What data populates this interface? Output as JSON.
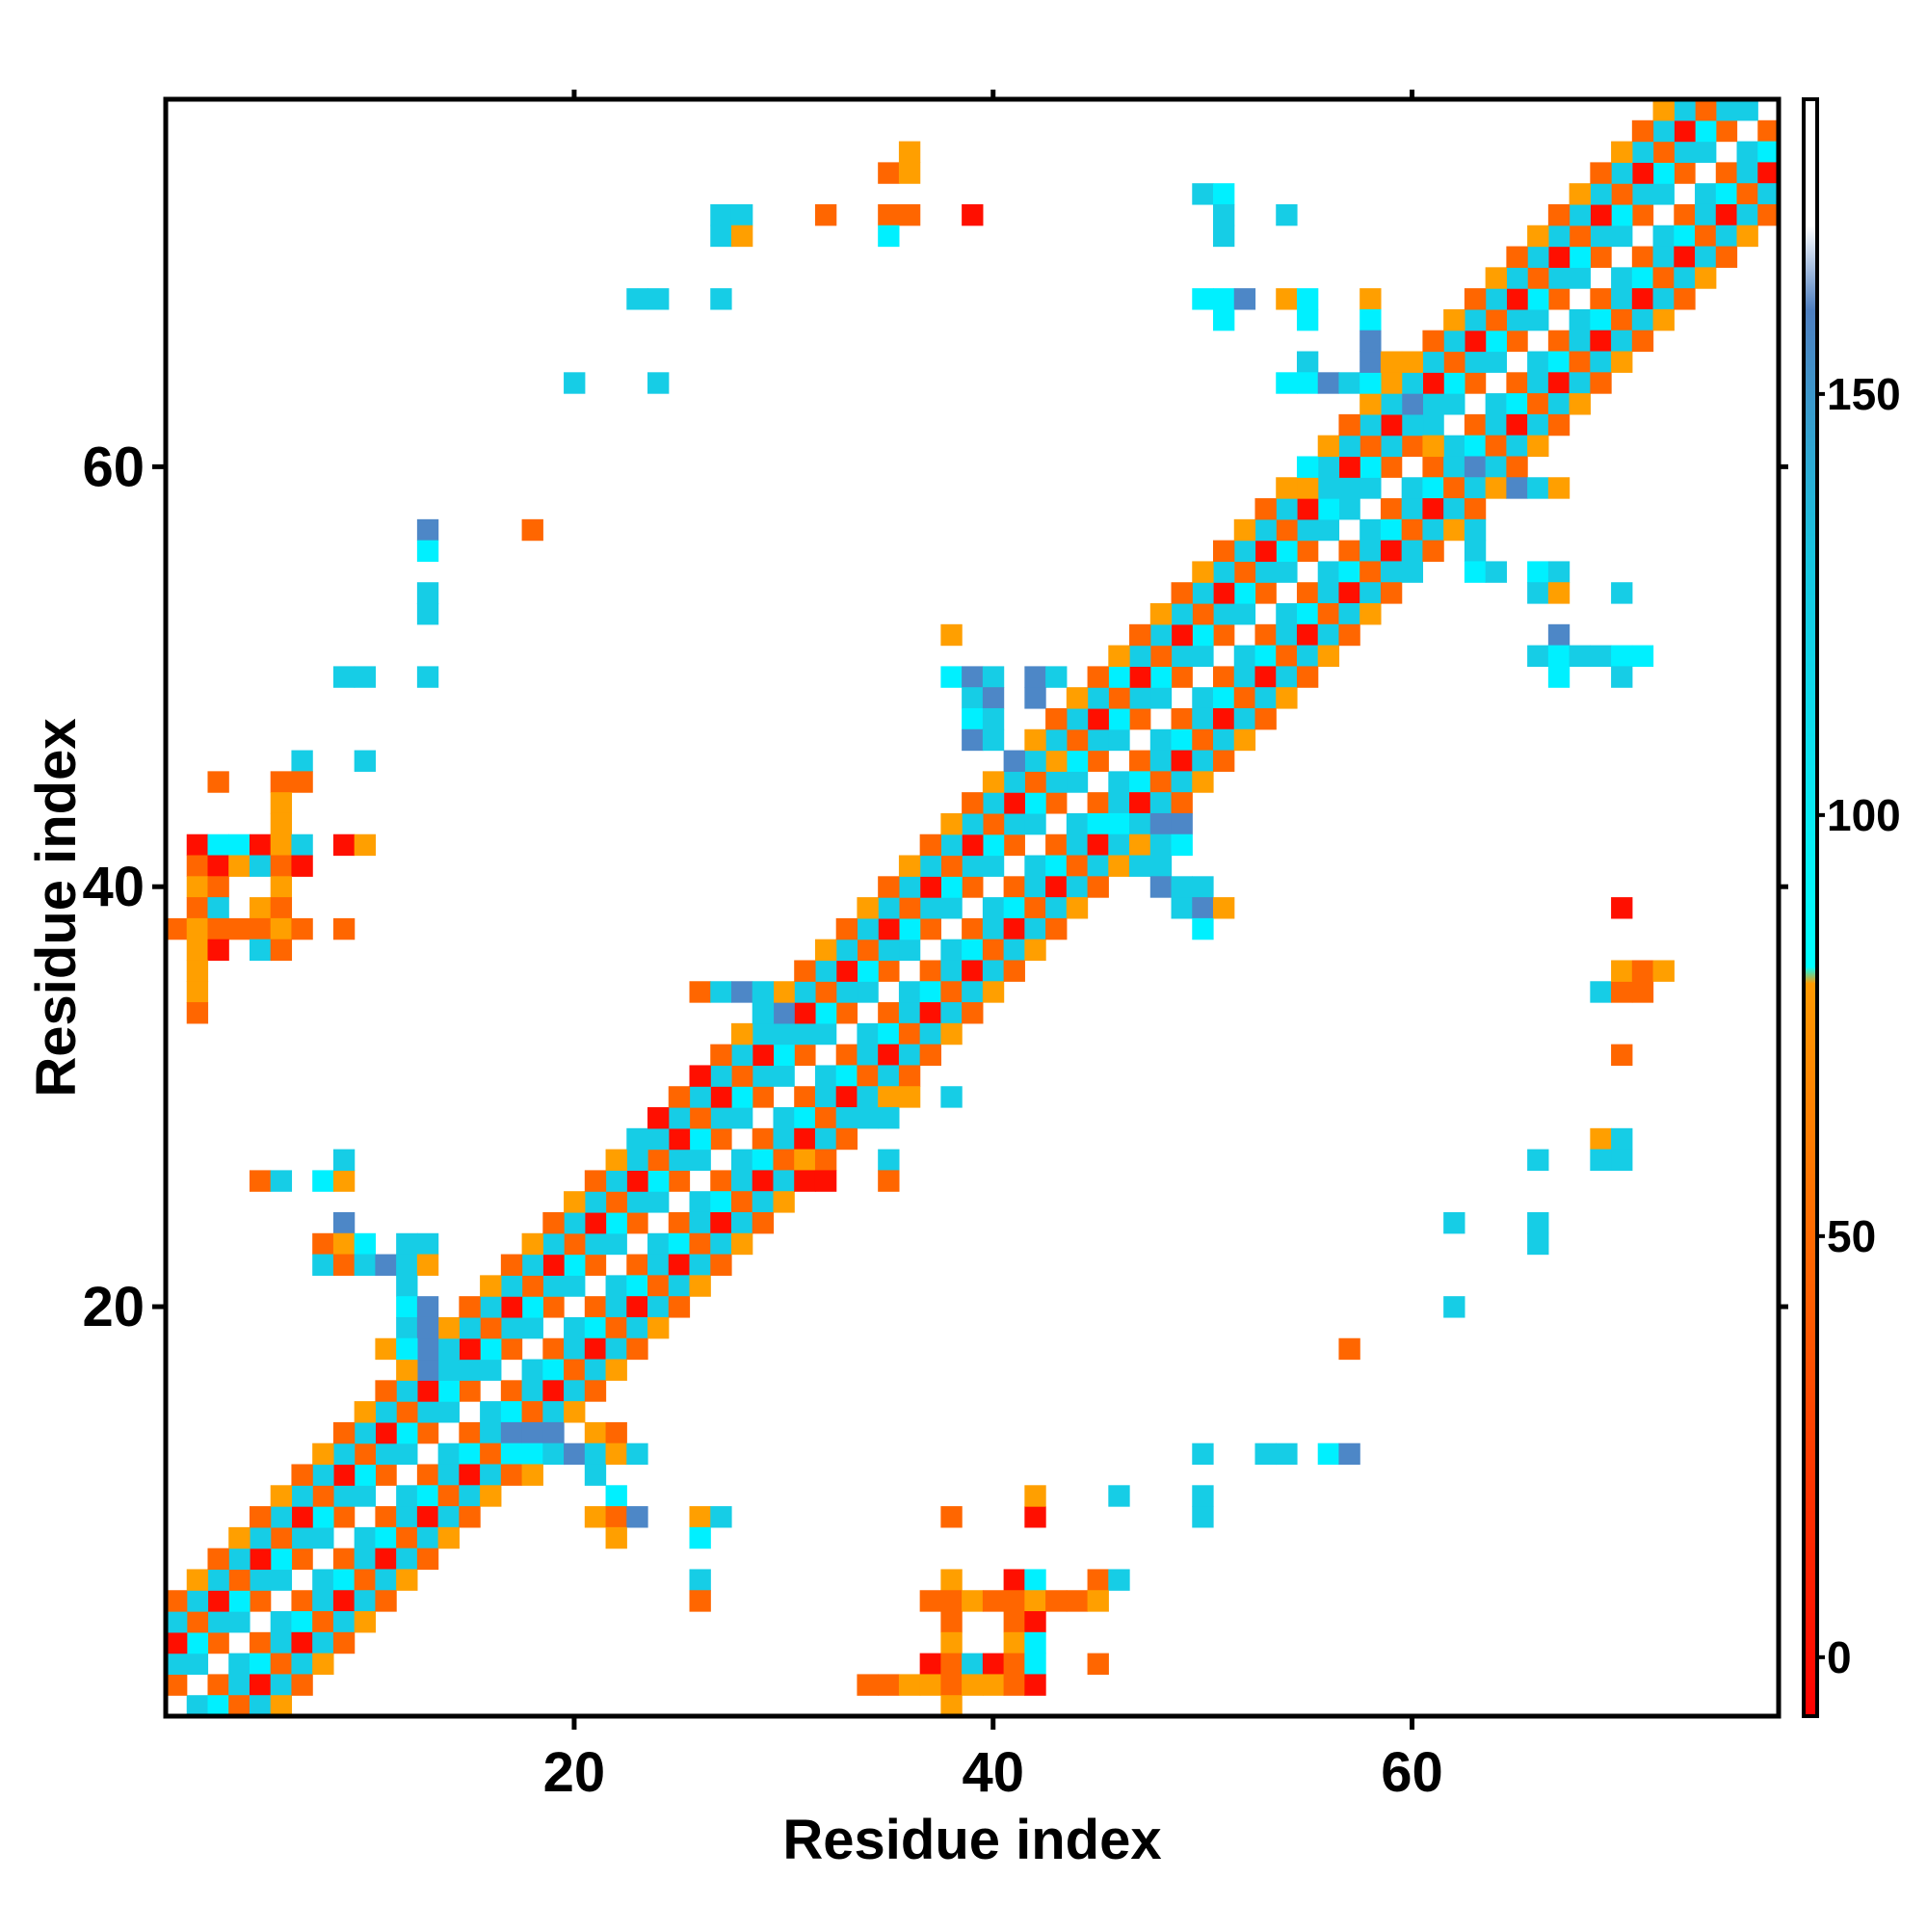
{
  "chart_data": {
    "type": "heatmap",
    "title": "",
    "xlabel": "Residue index",
    "ylabel": "Residue index",
    "xlim": [
      0.5,
      77.5
    ],
    "ylim": [
      0.5,
      77.5
    ],
    "x_ticks": [
      20,
      40,
      60
    ],
    "y_ticks": [
      20,
      40,
      60
    ],
    "grid": false,
    "legend": "right",
    "colorbar": {
      "range": [
        -7,
        185
      ],
      "ticks": [
        0,
        50,
        100,
        150
      ],
      "stops": [
        {
          "value": -7,
          "color": "#ff0000"
        },
        {
          "value": 40,
          "color": "#ff5a00"
        },
        {
          "value": 80,
          "color": "#ff9900"
        },
        {
          "value": 82,
          "color": "#00ffff"
        },
        {
          "value": 130,
          "color": "#16c6e0"
        },
        {
          "value": 160,
          "color": "#4f7fc0"
        },
        {
          "value": 170,
          "color": "#ffffff"
        },
        {
          "value": 185,
          "color": "#ffffff"
        }
      ]
    },
    "color_classes": {
      "r": {
        "color": "#ff0f00",
        "approx_value": 5
      },
      "o": {
        "color": "#ff6600",
        "approx_value": 40
      },
      "a": {
        "color": "#ff9f00",
        "approx_value": 70
      },
      "c": {
        "color": "#00f0ff",
        "approx_value": 90
      },
      "t": {
        "color": "#16cde6",
        "approx_value": 120
      },
      "b": {
        "color": "#4d87c7",
        "approx_value": 155
      }
    },
    "bands": [
      {
        "offset": 1,
        "pattern": [
          "o",
          "t"
        ]
      },
      {
        "offset": 2,
        "pattern": [
          "t",
          "c"
        ]
      },
      {
        "offset": 3,
        "pattern": [
          "r",
          "o"
        ]
      },
      {
        "offset": 4,
        "pattern": [
          "t",
          "t"
        ]
      },
      {
        "offset": 5,
        "pattern": [
          "o",
          "a"
        ]
      }
    ],
    "cells": [
      [
        39,
        72,
        "r"
      ],
      [
        32,
        72,
        "o"
      ],
      [
        35,
        74,
        "o"
      ],
      [
        36,
        74,
        "a"
      ],
      [
        36,
        75,
        "a"
      ],
      [
        35,
        72,
        "o"
      ],
      [
        36,
        72,
        "o"
      ],
      [
        27,
        72,
        "t"
      ],
      [
        28,
        72,
        "t"
      ],
      [
        27,
        71,
        "t"
      ],
      [
        28,
        71,
        "a"
      ],
      [
        35,
        71,
        "c"
      ],
      [
        23,
        68,
        "t"
      ],
      [
        24,
        68,
        "t"
      ],
      [
        27,
        68,
        "t"
      ],
      [
        20,
        64,
        "t"
      ],
      [
        24,
        64,
        "t"
      ],
      [
        13,
        57,
        "b"
      ],
      [
        13,
        56,
        "c"
      ],
      [
        13,
        54,
        "t"
      ],
      [
        13,
        53,
        "t"
      ],
      [
        13,
        50,
        "t"
      ],
      [
        18,
        57,
        "o"
      ],
      [
        9,
        50,
        "t"
      ],
      [
        10,
        50,
        "t"
      ],
      [
        7,
        46,
        "t"
      ],
      [
        10,
        46,
        "t"
      ],
      [
        3,
        45,
        "o"
      ],
      [
        6,
        45,
        "o"
      ],
      [
        7,
        45,
        "o"
      ],
      [
        6,
        44,
        "a"
      ],
      [
        6,
        43,
        "a"
      ],
      [
        2,
        42,
        "r"
      ],
      [
        3,
        42,
        "c"
      ],
      [
        4,
        42,
        "c"
      ],
      [
        5,
        42,
        "r"
      ],
      [
        6,
        42,
        "a"
      ],
      [
        7,
        42,
        "t"
      ],
      [
        9,
        42,
        "r"
      ],
      [
        10,
        42,
        "a"
      ],
      [
        2,
        41,
        "o"
      ],
      [
        3,
        41,
        "r"
      ],
      [
        4,
        41,
        "a"
      ],
      [
        5,
        41,
        "t"
      ],
      [
        6,
        41,
        "o"
      ],
      [
        7,
        41,
        "r"
      ],
      [
        2,
        40,
        "a"
      ],
      [
        3,
        40,
        "o"
      ],
      [
        6,
        40,
        "a"
      ],
      [
        2,
        39,
        "o"
      ],
      [
        3,
        39,
        "t"
      ],
      [
        5,
        39,
        "a"
      ],
      [
        6,
        39,
        "o"
      ],
      [
        1,
        38,
        "o"
      ],
      [
        2,
        38,
        "a"
      ],
      [
        3,
        38,
        "o"
      ],
      [
        4,
        38,
        "o"
      ],
      [
        5,
        38,
        "o"
      ],
      [
        6,
        38,
        "a"
      ],
      [
        7,
        38,
        "o"
      ],
      [
        9,
        38,
        "o"
      ],
      [
        2,
        37,
        "a"
      ],
      [
        3,
        37,
        "r"
      ],
      [
        5,
        37,
        "t"
      ],
      [
        6,
        37,
        "o"
      ],
      [
        2,
        36,
        "a"
      ],
      [
        2,
        35,
        "a"
      ],
      [
        2,
        34,
        "o"
      ],
      [
        5,
        26,
        "o"
      ],
      [
        6,
        26,
        "t"
      ],
      [
        8,
        26,
        "c"
      ],
      [
        9,
        26,
        "a"
      ],
      [
        9,
        27,
        "t"
      ],
      [
        9,
        24,
        "b"
      ],
      [
        8,
        23,
        "o"
      ],
      [
        9,
        23,
        "a"
      ],
      [
        10,
        23,
        "c"
      ],
      [
        12,
        23,
        "t"
      ],
      [
        13,
        23,
        "t"
      ],
      [
        8,
        22,
        "t"
      ],
      [
        9,
        22,
        "o"
      ],
      [
        10,
        22,
        "t"
      ],
      [
        11,
        22,
        "b"
      ],
      [
        12,
        22,
        "t"
      ],
      [
        13,
        22,
        "a"
      ],
      [
        12,
        21,
        "t"
      ],
      [
        12,
        20,
        "c"
      ],
      [
        13,
        20,
        "b"
      ],
      [
        12,
        19,
        "t"
      ],
      [
        13,
        19,
        "b"
      ],
      [
        11,
        18,
        "a"
      ],
      [
        12,
        18,
        "c"
      ],
      [
        13,
        18,
        "b"
      ],
      [
        14,
        18,
        "t"
      ],
      [
        12,
        17,
        "a"
      ],
      [
        13,
        17,
        "b"
      ],
      [
        14,
        17,
        "t"
      ],
      [
        15,
        17,
        "t"
      ],
      [
        17,
        14,
        "b"
      ],
      [
        18,
        14,
        "b"
      ],
      [
        19,
        14,
        "b"
      ],
      [
        17,
        13,
        "c"
      ],
      [
        18,
        13,
        "c"
      ],
      [
        19,
        13,
        "t"
      ],
      [
        20,
        13,
        "b"
      ],
      [
        21,
        14,
        "a"
      ],
      [
        22,
        14,
        "o"
      ],
      [
        21,
        13,
        "t"
      ],
      [
        22,
        13,
        "a"
      ],
      [
        23,
        13,
        "t"
      ],
      [
        18,
        12,
        "a"
      ],
      [
        21,
        12,
        "t"
      ],
      [
        22,
        11,
        "c"
      ],
      [
        21,
        10,
        "a"
      ],
      [
        22,
        10,
        "o"
      ],
      [
        23,
        10,
        "b"
      ],
      [
        22,
        9,
        "a"
      ],
      [
        26,
        10,
        "a"
      ],
      [
        27,
        10,
        "t"
      ],
      [
        26,
        9,
        "c"
      ],
      [
        26,
        7,
        "t"
      ],
      [
        26,
        6,
        "o"
      ],
      [
        38,
        10,
        "o"
      ],
      [
        42,
        10,
        "r"
      ],
      [
        42,
        11,
        "a"
      ],
      [
        46,
        11,
        "t"
      ],
      [
        50,
        11,
        "t"
      ],
      [
        50,
        10,
        "t"
      ],
      [
        38,
        7,
        "a"
      ],
      [
        41,
        7,
        "r"
      ],
      [
        42,
        7,
        "c"
      ],
      [
        45,
        7,
        "o"
      ],
      [
        46,
        7,
        "t"
      ],
      [
        37,
        6,
        "o"
      ],
      [
        38,
        6,
        "o"
      ],
      [
        39,
        6,
        "a"
      ],
      [
        40,
        6,
        "o"
      ],
      [
        41,
        6,
        "o"
      ],
      [
        42,
        6,
        "a"
      ],
      [
        43,
        6,
        "o"
      ],
      [
        44,
        6,
        "o"
      ],
      [
        45,
        6,
        "a"
      ],
      [
        38,
        5,
        "o"
      ],
      [
        41,
        5,
        "o"
      ],
      [
        42,
        5,
        "r"
      ],
      [
        38,
        4,
        "a"
      ],
      [
        41,
        4,
        "a"
      ],
      [
        42,
        4,
        "c"
      ],
      [
        37,
        3,
        "r"
      ],
      [
        38,
        3,
        "o"
      ],
      [
        39,
        3,
        "t"
      ],
      [
        40,
        3,
        "r"
      ],
      [
        41,
        3,
        "o"
      ],
      [
        42,
        3,
        "c"
      ],
      [
        45,
        3,
        "o"
      ],
      [
        34,
        2,
        "o"
      ],
      [
        35,
        2,
        "o"
      ],
      [
        36,
        2,
        "a"
      ],
      [
        37,
        2,
        "a"
      ],
      [
        38,
        2,
        "o"
      ],
      [
        39,
        2,
        "a"
      ],
      [
        40,
        2,
        "a"
      ],
      [
        41,
        2,
        "o"
      ],
      [
        42,
        2,
        "r"
      ],
      [
        38,
        1,
        "a"
      ],
      [
        50,
        13,
        "t"
      ],
      [
        53,
        13,
        "t"
      ],
      [
        54,
        13,
        "t"
      ],
      [
        56,
        13,
        "c"
      ],
      [
        57,
        13,
        "b"
      ],
      [
        57,
        18,
        "o"
      ],
      [
        62,
        20,
        "t"
      ],
      [
        62,
        24,
        "t"
      ],
      [
        66,
        24,
        "t"
      ],
      [
        66,
        23,
        "t"
      ],
      [
        66,
        27,
        "t"
      ],
      [
        69,
        28,
        "a"
      ],
      [
        70,
        28,
        "t"
      ],
      [
        69,
        27,
        "t"
      ],
      [
        70,
        27,
        "t"
      ],
      [
        70,
        32,
        "o"
      ],
      [
        69,
        35,
        "t"
      ],
      [
        70,
        35,
        "o"
      ],
      [
        71,
        35,
        "o"
      ],
      [
        70,
        36,
        "a"
      ],
      [
        71,
        36,
        "o"
      ],
      [
        72,
        36,
        "a"
      ],
      [
        70,
        39,
        "r"
      ],
      [
        46,
        50,
        "c"
      ],
      [
        47,
        51,
        "t"
      ],
      [
        50,
        73,
        "t"
      ],
      [
        51,
        73,
        "c"
      ],
      [
        51,
        72,
        "t"
      ],
      [
        51,
        71,
        "t"
      ],
      [
        54,
        72,
        "t"
      ],
      [
        50,
        68,
        "c"
      ],
      [
        51,
        68,
        "c"
      ],
      [
        52,
        68,
        "b"
      ],
      [
        51,
        67,
        "c"
      ],
      [
        54,
        68,
        "a"
      ],
      [
        55,
        68,
        "c"
      ],
      [
        55,
        67,
        "c"
      ],
      [
        58,
        68,
        "a"
      ],
      [
        58,
        67,
        "c"
      ],
      [
        55,
        65,
        "t"
      ],
      [
        54,
        64,
        "c"
      ],
      [
        55,
        64,
        "c"
      ],
      [
        56,
        64,
        "b"
      ],
      [
        57,
        64,
        "t"
      ],
      [
        58,
        64,
        "c"
      ],
      [
        59,
        64,
        "a"
      ],
      [
        58,
        65,
        "b"
      ],
      [
        59,
        65,
        "a"
      ],
      [
        58,
        66,
        "b"
      ],
      [
        60,
        63,
        "b"
      ],
      [
        60,
        62,
        "t"
      ],
      [
        61,
        62,
        "t"
      ],
      [
        60,
        61,
        "o"
      ],
      [
        61,
        61,
        "a"
      ],
      [
        55,
        60,
        "c"
      ],
      [
        55,
        59,
        "a"
      ],
      [
        56,
        59,
        "t"
      ],
      [
        57,
        58,
        "t"
      ],
      [
        62,
        60,
        "t"
      ],
      [
        63,
        60,
        "b"
      ],
      [
        63,
        59,
        "t"
      ],
      [
        64,
        59,
        "a"
      ],
      [
        65,
        59,
        "b"
      ],
      [
        66,
        59,
        "t"
      ],
      [
        67,
        59,
        "a"
      ],
      [
        63,
        57,
        "t"
      ],
      [
        63,
        56,
        "t"
      ],
      [
        63,
        55,
        "c"
      ],
      [
        64,
        55,
        "t"
      ],
      [
        60,
        55,
        "t"
      ],
      [
        66,
        55,
        "c"
      ],
      [
        67,
        55,
        "t"
      ],
      [
        66,
        54,
        "t"
      ],
      [
        67,
        54,
        "a"
      ],
      [
        70,
        54,
        "t"
      ],
      [
        67,
        52,
        "b"
      ],
      [
        66,
        51,
        "t"
      ],
      [
        67,
        51,
        "c"
      ],
      [
        68,
        51,
        "t"
      ],
      [
        69,
        51,
        "t"
      ],
      [
        70,
        51,
        "c"
      ],
      [
        71,
        51,
        "c"
      ],
      [
        67,
        50,
        "c"
      ],
      [
        70,
        50,
        "t"
      ],
      [
        38,
        50,
        "c"
      ],
      [
        39,
        50,
        "b"
      ],
      [
        40,
        50,
        "t"
      ],
      [
        42,
        50,
        "b"
      ],
      [
        43,
        50,
        "t"
      ],
      [
        39,
        49,
        "t"
      ],
      [
        40,
        49,
        "b"
      ],
      [
        42,
        49,
        "b"
      ],
      [
        38,
        52,
        "a"
      ],
      [
        39,
        48,
        "c"
      ],
      [
        40,
        48,
        "t"
      ],
      [
        39,
        47,
        "b"
      ],
      [
        40,
        47,
        "t"
      ],
      [
        41,
        46,
        "b"
      ],
      [
        42,
        46,
        "t"
      ],
      [
        43,
        46,
        "a"
      ],
      [
        46,
        43,
        "c"
      ],
      [
        47,
        43,
        "t"
      ],
      [
        48,
        43,
        "b"
      ],
      [
        49,
        43,
        "b"
      ],
      [
        47,
        42,
        "a"
      ],
      [
        48,
        42,
        "t"
      ],
      [
        49,
        42,
        "c"
      ],
      [
        47,
        41,
        "t"
      ],
      [
        48,
        41,
        "t"
      ],
      [
        48,
        40,
        "b"
      ],
      [
        49,
        40,
        "t"
      ],
      [
        50,
        40,
        "t"
      ],
      [
        49,
        39,
        "t"
      ],
      [
        50,
        39,
        "b"
      ],
      [
        51,
        39,
        "a"
      ],
      [
        50,
        38,
        "c"
      ],
      [
        26,
        35,
        "o"
      ],
      [
        27,
        35,
        "t"
      ],
      [
        28,
        35,
        "b"
      ],
      [
        29,
        35,
        "t"
      ],
      [
        29,
        34,
        "t"
      ],
      [
        30,
        34,
        "b"
      ],
      [
        30,
        33,
        "t"
      ],
      [
        31,
        33,
        "t"
      ],
      [
        26,
        31,
        "r"
      ],
      [
        25,
        30,
        "o"
      ],
      [
        24,
        29,
        "r"
      ],
      [
        23,
        28,
        "t"
      ],
      [
        31,
        27,
        "a"
      ],
      [
        32,
        27,
        "o"
      ],
      [
        31,
        26,
        "r"
      ],
      [
        32,
        26,
        "r"
      ],
      [
        34,
        30,
        "t"
      ],
      [
        35,
        30,
        "a"
      ],
      [
        34,
        29,
        "t"
      ],
      [
        35,
        29,
        "t"
      ],
      [
        36,
        31,
        "o"
      ],
      [
        36,
        30,
        "a"
      ],
      [
        38,
        30,
        "t"
      ],
      [
        35,
        27,
        "t"
      ],
      [
        35,
        26,
        "o"
      ]
    ]
  }
}
